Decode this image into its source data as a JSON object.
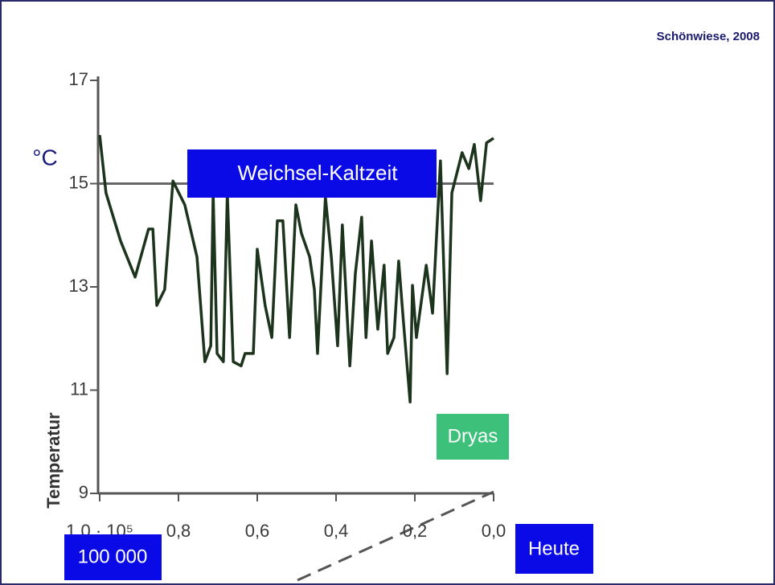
{
  "chart_data": {
    "type": "line",
    "source": "Schönwiese, 2008",
    "unit_label": "°C",
    "y_label": "Temperatur",
    "period_label": "Weichsel-Kaltzeit",
    "event_label": "Dryas",
    "start_label": "100 000",
    "end_label": "Heute",
    "x": [
      1.0,
      0.984,
      0.947,
      0.91,
      0.876,
      0.865,
      0.855,
      0.835,
      0.814,
      0.784,
      0.753,
      0.733,
      0.718,
      0.712,
      0.702,
      0.686,
      0.676,
      0.661,
      0.641,
      0.631,
      0.61,
      0.6,
      0.58,
      0.563,
      0.549,
      0.535,
      0.518,
      0.502,
      0.488,
      0.467,
      0.455,
      0.447,
      0.427,
      0.412,
      0.396,
      0.384,
      0.365,
      0.351,
      0.335,
      0.324,
      0.31,
      0.294,
      0.278,
      0.269,
      0.253,
      0.241,
      0.229,
      0.212,
      0.206,
      0.196,
      0.171,
      0.155,
      0.135,
      0.118,
      0.106,
      0.08,
      0.063,
      0.049,
      0.033,
      0.018,
      0.0
    ],
    "series": [
      {
        "color": "#1c331c",
        "values": [
          15.94,
          14.82,
          13.89,
          13.19,
          14.12,
          14.12,
          12.64,
          12.95,
          15.05,
          14.59,
          13.58,
          11.55,
          11.86,
          14.82,
          11.71,
          11.55,
          14.82,
          11.55,
          11.47,
          11.71,
          11.71,
          13.73,
          12.64,
          12.02,
          14.28,
          14.28,
          12.02,
          14.59,
          14.04,
          13.58,
          12.95,
          11.71,
          14.74,
          13.58,
          11.86,
          14.2,
          11.47,
          13.26,
          14.35,
          12.02,
          13.89,
          12.18,
          13.42,
          11.71,
          12.02,
          13.5,
          12.33,
          10.77,
          13.03,
          12.02,
          13.42,
          12.49,
          15.44,
          11.32,
          14.82,
          15.6,
          15.29,
          15.76,
          14.67,
          15.79,
          15.88
        ]
      }
    ],
    "reference_line": 15,
    "xlim": [
      1.0,
      0.0
    ],
    "xticks": [
      {
        "value": 1.0,
        "label": "1,0 · 10⁵"
      },
      {
        "value": 0.8,
        "label": "0,8"
      },
      {
        "value": 0.6,
        "label": "0,6"
      },
      {
        "value": 0.4,
        "label": "0,4"
      },
      {
        "value": 0.2,
        "label": "0,2"
      },
      {
        "value": 0.0,
        "label": "0,0"
      }
    ],
    "ylim": [
      9,
      17
    ],
    "yticks": [
      9,
      11,
      13,
      15,
      17
    ]
  }
}
